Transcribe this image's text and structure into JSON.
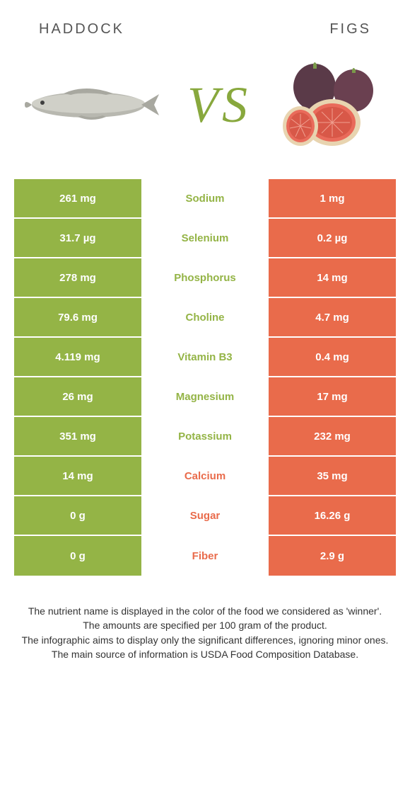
{
  "colors": {
    "left": "#94b446",
    "right": "#e96b4b",
    "vs": "#88a83d",
    "label_left_winner": "#94b446",
    "label_right_winner": "#e96b4b"
  },
  "foods": {
    "left_title": "Haddock",
    "right_title": "Figs"
  },
  "vs_label": "VS",
  "rows": [
    {
      "left": "261 mg",
      "label": "Sodium",
      "right": "1 mg",
      "winner": "left"
    },
    {
      "left": "31.7 µg",
      "label": "Selenium",
      "right": "0.2 µg",
      "winner": "left"
    },
    {
      "left": "278 mg",
      "label": "Phosphorus",
      "right": "14 mg",
      "winner": "left"
    },
    {
      "left": "79.6 mg",
      "label": "Choline",
      "right": "4.7 mg",
      "winner": "left"
    },
    {
      "left": "4.119 mg",
      "label": "Vitamin B3",
      "right": "0.4 mg",
      "winner": "left"
    },
    {
      "left": "26 mg",
      "label": "Magnesium",
      "right": "17 mg",
      "winner": "left"
    },
    {
      "left": "351 mg",
      "label": "Potassium",
      "right": "232 mg",
      "winner": "left"
    },
    {
      "left": "14 mg",
      "label": "Calcium",
      "right": "35 mg",
      "winner": "right"
    },
    {
      "left": "0 g",
      "label": "Sugar",
      "right": "16.26 g",
      "winner": "right"
    },
    {
      "left": "0 g",
      "label": "Fiber",
      "right": "2.9 g",
      "winner": "right"
    }
  ],
  "footnotes": [
    "The nutrient name is displayed in the color of the food we considered as 'winner'.",
    "The amounts are specified per 100 gram of the product.",
    "The infographic aims to display only the significant differences, ignoring minor ones.",
    "The main source of information is USDA Food Composition Database."
  ]
}
